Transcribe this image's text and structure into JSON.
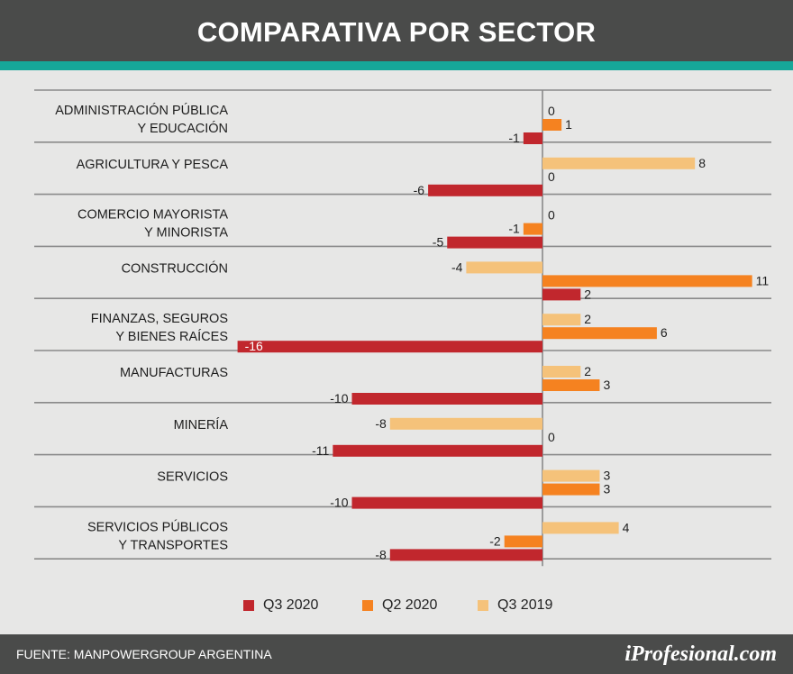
{
  "header": {
    "title": "COMPARATIVA POR SECTOR"
  },
  "chart_data": {
    "type": "bar",
    "orientation": "horizontal",
    "title": "COMPARATIVA POR SECTOR",
    "xlim": [
      -16,
      12
    ],
    "categories": [
      {
        "lines": [
          "ADMINISTRACIÓN PÚBLICA",
          "Y EDUCACIÓN"
        ]
      },
      {
        "lines": [
          "AGRICULTURA Y PESCA"
        ]
      },
      {
        "lines": [
          "COMERCIO MAYORISTA",
          "Y MINORISTA"
        ]
      },
      {
        "lines": [
          "CONSTRUCCIÓN"
        ]
      },
      {
        "lines": [
          "FINANZAS, SEGUROS",
          "Y BIENES RAÍCES"
        ]
      },
      {
        "lines": [
          "MANUFACTURAS"
        ]
      },
      {
        "lines": [
          "MINERÍA"
        ]
      },
      {
        "lines": [
          "SERVICIOS"
        ]
      },
      {
        "lines": [
          "SERVICIOS PÚBLICOS",
          "Y TRANSPORTES"
        ]
      }
    ],
    "series": [
      {
        "name": "Q3 2019",
        "color": "#f5c27a",
        "values": [
          0,
          8,
          0,
          -4,
          2,
          2,
          -8,
          3,
          4
        ]
      },
      {
        "name": "Q2 2020",
        "color": "#f58220",
        "values": [
          1,
          0,
          -1,
          11,
          6,
          3,
          0,
          3,
          -2
        ]
      },
      {
        "name": "Q3 2020",
        "color": "#c1272d",
        "values": [
          -1,
          -6,
          -5,
          2,
          -16,
          -10,
          -11,
          -10,
          -8
        ]
      }
    ],
    "legend": [
      {
        "name": "Q3 2020",
        "color": "#c1272d"
      },
      {
        "name": "Q2 2020",
        "color": "#f58220"
      },
      {
        "name": "Q3 2019",
        "color": "#f5c27a"
      }
    ]
  },
  "footer": {
    "source": "FUENTE: MANPOWERGROUP ARGENTINA",
    "brand": "iProfesional.com"
  }
}
